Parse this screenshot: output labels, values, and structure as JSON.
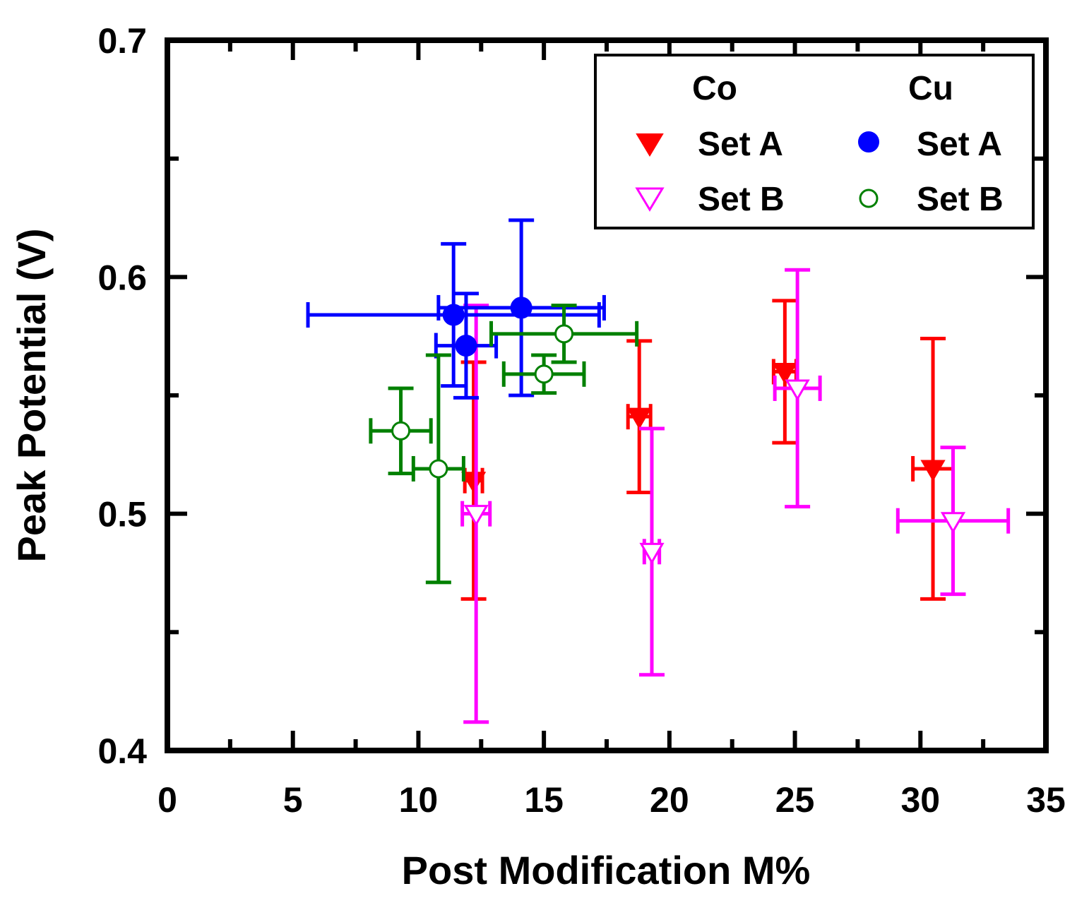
{
  "chart_data": {
    "type": "scatter",
    "title": "",
    "xlabel": "Post Modification M%",
    "ylabel": "Peak Potential (V)",
    "xlim": [
      0,
      35
    ],
    "ylim": [
      0.4,
      0.7
    ],
    "x_ticks": [
      "0",
      "5",
      "10",
      "15",
      "20",
      "25",
      "30",
      "35"
    ],
    "y_ticks": [
      "0.4",
      "0.5",
      "0.6",
      "0.7"
    ],
    "legend": {
      "position": "top-right",
      "group_headers": [
        "Co",
        "Cu"
      ],
      "entries": [
        {
          "group": "Co",
          "label": "Set A",
          "series": "Co Set A"
        },
        {
          "group": "Co",
          "label": "Set B",
          "series": "Co Set B"
        },
        {
          "group": "Cu",
          "label": "Set A",
          "series": "Cu Set A"
        },
        {
          "group": "Cu",
          "label": "Set B",
          "series": "Cu Set B"
        }
      ]
    },
    "series": [
      {
        "name": "Co Set A",
        "marker": "triangle-down-filled",
        "color": "#ff0000",
        "points": [
          {
            "x": 12.2,
            "y": 0.514,
            "xerr": 0.35,
            "yerr": 0.05
          },
          {
            "x": 18.8,
            "y": 0.541,
            "xerr": 0.45,
            "yerr": 0.032
          },
          {
            "x": 24.6,
            "y": 0.56,
            "xerr": 0.45,
            "yerr": 0.03
          },
          {
            "x": 30.5,
            "y": 0.519,
            "xerr": 0.8,
            "yerr": 0.055
          }
        ]
      },
      {
        "name": "Co Set B",
        "marker": "triangle-down-open",
        "color": "#ff00ff",
        "points": [
          {
            "x": 12.3,
            "y": 0.5,
            "xerr": 0.55,
            "yerr": 0.088
          },
          {
            "x": 19.3,
            "y": 0.484,
            "xerr": 0.3,
            "yerr": 0.052
          },
          {
            "x": 25.1,
            "y": 0.553,
            "xerr": 0.9,
            "yerr": 0.05
          },
          {
            "x": 31.3,
            "y": 0.497,
            "xerr": 2.2,
            "yerr": 0.031
          }
        ]
      },
      {
        "name": "Cu Set A",
        "marker": "circle-filled",
        "color": "#0000ff",
        "points": [
          {
            "x": 11.4,
            "y": 0.584,
            "xerr": 5.8,
            "yerr": 0.03
          },
          {
            "x": 11.9,
            "y": 0.571,
            "xerr": 1.2,
            "yerr": 0.022
          },
          {
            "x": 14.1,
            "y": 0.587,
            "xerr": 3.3,
            "yerr": 0.037
          }
        ]
      },
      {
        "name": "Cu Set B",
        "marker": "circle-open",
        "color": "#008000",
        "points": [
          {
            "x": 9.3,
            "y": 0.535,
            "xerr": 1.2,
            "yerr": 0.018
          },
          {
            "x": 10.8,
            "y": 0.519,
            "xerr": 1.0,
            "yerr": 0.048
          },
          {
            "x": 15.0,
            "y": 0.559,
            "xerr": 1.6,
            "yerr": 0.008
          },
          {
            "x": 15.8,
            "y": 0.576,
            "xerr": 2.9,
            "yerr": 0.012
          }
        ]
      }
    ]
  }
}
